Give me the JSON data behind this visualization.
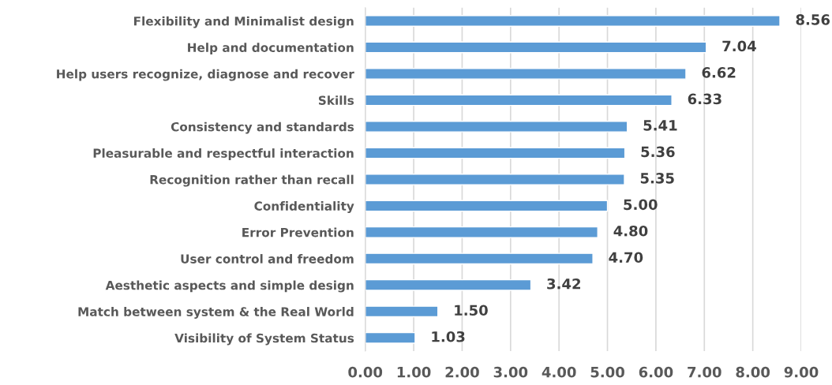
{
  "chart_data": {
    "type": "bar",
    "orientation": "horizontal",
    "categories": [
      "Flexibility and Minimalist design",
      "Help and documentation",
      "Help users recognize, diagnose and recover",
      "Skills",
      "Consistency and standards",
      "Pleasurable and respectful interaction",
      "Recognition rather than recall",
      "Confidentiality",
      "Error Prevention",
      "User control and freedom",
      "Aesthetic aspects and simple design",
      "Match between system & the Real World",
      "Visibility of System Status"
    ],
    "values": [
      8.56,
      7.04,
      6.62,
      6.33,
      5.41,
      5.36,
      5.35,
      5.0,
      4.8,
      4.7,
      3.42,
      1.5,
      1.03
    ],
    "value_labels": [
      "8.56",
      "7.04",
      "6.62",
      "6.33",
      "5.41",
      "5.36",
      "5.35",
      "5.00",
      "4.80",
      "4.70",
      "3.42",
      "1.50",
      "1.03"
    ],
    "color": "#5b9bd5",
    "xlim": [
      0,
      9
    ],
    "xticks": [
      {
        "value": 0,
        "label": "0.00"
      },
      {
        "value": 1,
        "label": "1.00"
      },
      {
        "value": 2,
        "label": "2.00"
      },
      {
        "value": 3,
        "label": "3.00"
      },
      {
        "value": 4,
        "label": "4.00"
      },
      {
        "value": 5,
        "label": "5.00"
      },
      {
        "value": 6,
        "label": "6.00"
      },
      {
        "value": 7,
        "label": "7.00"
      },
      {
        "value": 8,
        "label": "8.00"
      },
      {
        "value": 9,
        "label": "9.00"
      }
    ],
    "grid": "x",
    "legend": false
  }
}
